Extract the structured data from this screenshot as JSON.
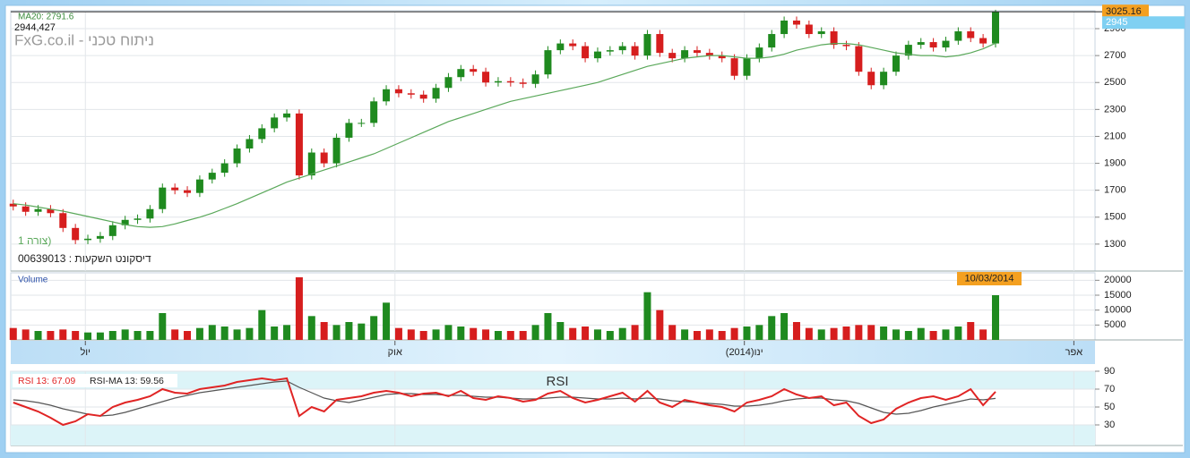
{
  "header": {
    "site": "FxG.co.il - ניתוח טכני",
    "instrument": "00639013 : דיסקונט השקעות",
    "pattern": "צורה 1)"
  },
  "chart_data": [
    {
      "type": "candlestick",
      "open": [
        1600,
        1580,
        1540,
        1560,
        1530,
        1420,
        1330,
        1340,
        1360,
        1440,
        1480,
        1490,
        1560,
        1720,
        1700,
        1680,
        1780,
        1830,
        1900,
        2010,
        2080,
        2160,
        2240,
        2270,
        1810,
        1980,
        1900,
        2090,
        2200,
        2200,
        2360,
        2450,
        2420,
        2410,
        2380,
        2460,
        2540,
        2600,
        2580,
        2500,
        2510,
        2500,
        2490,
        2560,
        2740,
        2790,
        2770,
        2680,
        2730,
        2740,
        2770,
        2700,
        2860,
        2720,
        2680,
        2740,
        2720,
        2700,
        2680,
        2550,
        2680,
        2760,
        2860,
        2960,
        2930,
        2860,
        2880,
        2780,
        2770,
        2580,
        2480,
        2580,
        2700,
        2780,
        2800,
        2760,
        2810,
        2880,
        2830,
        2790
      ],
      "high": [
        1630,
        1610,
        1590,
        1590,
        1560,
        1450,
        1370,
        1390,
        1470,
        1510,
        1520,
        1590,
        1750,
        1750,
        1730,
        1810,
        1860,
        1930,
        2040,
        2110,
        2190,
        2270,
        2300,
        2300,
        2010,
        2010,
        2120,
        2230,
        2230,
        2390,
        2480,
        2480,
        2450,
        2440,
        2490,
        2570,
        2630,
        2630,
        2610,
        2540,
        2540,
        2530,
        2590,
        2770,
        2820,
        2820,
        2800,
        2760,
        2770,
        2800,
        2800,
        2890,
        2890,
        2750,
        2770,
        2770,
        2750,
        2730,
        2710,
        2710,
        2790,
        2890,
        2990,
        2990,
        2960,
        2910,
        2910,
        2810,
        2800,
        2610,
        2610,
        2730,
        2810,
        2830,
        2830,
        2840,
        2910,
        2910,
        2860,
        3040
      ],
      "low": [
        1550,
        1510,
        1510,
        1500,
        1390,
        1300,
        1300,
        1310,
        1330,
        1410,
        1450,
        1460,
        1530,
        1670,
        1650,
        1650,
        1750,
        1800,
        1870,
        1980,
        2050,
        2130,
        2210,
        1780,
        1780,
        1870,
        1870,
        2060,
        2170,
        2170,
        2330,
        2390,
        2380,
        2350,
        2350,
        2430,
        2510,
        2550,
        2470,
        2470,
        2470,
        2460,
        2460,
        2530,
        2710,
        2740,
        2650,
        2650,
        2700,
        2710,
        2670,
        2670,
        2690,
        2650,
        2650,
        2690,
        2670,
        2650,
        2520,
        2520,
        2650,
        2730,
        2830,
        2900,
        2830,
        2830,
        2750,
        2740,
        2550,
        2450,
        2450,
        2550,
        2670,
        2750,
        2730,
        2730,
        2780,
        2800,
        2760,
        2760
      ],
      "close": [
        1580,
        1540,
        1560,
        1530,
        1420,
        1330,
        1340,
        1360,
        1440,
        1480,
        1490,
        1560,
        1720,
        1700,
        1680,
        1780,
        1830,
        1900,
        2010,
        2080,
        2160,
        2240,
        2270,
        1810,
        1980,
        1900,
        2090,
        2200,
        2200,
        2360,
        2450,
        2420,
        2410,
        2380,
        2460,
        2540,
        2600,
        2580,
        2500,
        2510,
        2500,
        2490,
        2560,
        2740,
        2790,
        2770,
        2680,
        2730,
        2740,
        2770,
        2700,
        2860,
        2720,
        2680,
        2740,
        2720,
        2700,
        2680,
        2550,
        2680,
        2760,
        2860,
        2960,
        2930,
        2860,
        2880,
        2780,
        2770,
        2580,
        2480,
        2580,
        2700,
        2780,
        2800,
        2760,
        2810,
        2880,
        2830,
        2790,
        3025.16
      ],
      "up_color": "#1f8a1f",
      "down_color": "#d61e1e",
      "ma": {
        "label": "MA20: 2791.6",
        "color": "#5aa85a",
        "values": [
          1600,
          1590,
          1575,
          1560,
          1545,
          1525,
          1505,
          1485,
          1465,
          1445,
          1430,
          1425,
          1430,
          1450,
          1475,
          1500,
          1530,
          1565,
          1600,
          1640,
          1680,
          1720,
          1760,
          1790,
          1820,
          1850,
          1880,
          1910,
          1940,
          1970,
          2010,
          2050,
          2090,
          2130,
          2170,
          2210,
          2240,
          2270,
          2300,
          2330,
          2360,
          2380,
          2400,
          2420,
          2440,
          2460,
          2480,
          2500,
          2530,
          2560,
          2590,
          2620,
          2640,
          2660,
          2680,
          2690,
          2700,
          2700,
          2690,
          2680,
          2680,
          2690,
          2710,
          2740,
          2760,
          2780,
          2790,
          2790,
          2780,
          2760,
          2740,
          2720,
          2710,
          2700,
          2700,
          2690,
          2700,
          2720,
          2750,
          2791.6
        ]
      },
      "crosshair": {
        "value": 2944.427,
        "label": "2944,427"
      },
      "last_price": 3025.16,
      "marker": 2945,
      "ylim": [
        1100,
        3033
      ],
      "yticks": [
        1300,
        1500,
        1700,
        1900,
        2100,
        2300,
        2500,
        2700,
        2900
      ],
      "xlim": [
        -0.2,
        87
      ]
    },
    {
      "type": "bar",
      "title": "Volume",
      "values": [
        4000,
        3500,
        3000,
        3000,
        3500,
        3000,
        2500,
        2500,
        3000,
        3500,
        3000,
        3000,
        9000,
        3500,
        3000,
        4000,
        5000,
        4500,
        3500,
        4000,
        10000,
        4500,
        5000,
        21000,
        8000,
        6000,
        5000,
        6000,
        5500,
        8000,
        12500,
        4000,
        3500,
        3000,
        3500,
        5000,
        4500,
        4000,
        3500,
        3000,
        3000,
        3000,
        5000,
        9000,
        6000,
        4000,
        4500,
        3500,
        3000,
        4000,
        5000,
        16000,
        10000,
        5000,
        3500,
        3000,
        3500,
        3000,
        4000,
        4500,
        5000,
        8000,
        9000,
        6000,
        4000,
        3500,
        4000,
        4500,
        5000,
        5000,
        4500,
        3500,
        3000,
        4000,
        3000,
        3500,
        4500,
        6000,
        3500,
        15000
      ],
      "ylim": [
        0,
        22500
      ],
      "yticks": [
        5000,
        10000,
        15000,
        20000
      ],
      "xlim": [
        -0.2,
        87
      ],
      "xticks": [
        {
          "value": 5.8,
          "label": "יול"
        },
        {
          "value": 30.7,
          "label": "אוק"
        },
        {
          "value": 58.8,
          "label": "(2014)ינו"
        },
        {
          "value": 85.3,
          "label": "אפר"
        }
      ],
      "date_label": "10/03/2014"
    },
    {
      "type": "line",
      "title": "RSI",
      "series": [
        {
          "name": "RSI 13: 67.09",
          "color": "#e02424",
          "values": [
            55,
            50,
            45,
            38,
            30,
            34,
            42,
            40,
            50,
            55,
            58,
            62,
            70,
            66,
            65,
            70,
            72,
            74,
            78,
            80,
            82,
            80,
            82,
            40,
            50,
            45,
            58,
            60,
            62,
            66,
            68,
            66,
            62,
            65,
            66,
            62,
            68,
            60,
            58,
            62,
            60,
            56,
            58,
            65,
            68,
            60,
            55,
            58,
            62,
            66,
            56,
            68,
            55,
            50,
            58,
            55,
            52,
            50,
            45,
            55,
            58,
            62,
            70,
            64,
            60,
            62,
            52,
            55,
            40,
            32,
            36,
            48,
            55,
            60,
            62,
            58,
            62,
            70,
            52,
            67.09
          ]
        },
        {
          "name": "RSI-MA 13: 59.56",
          "color": "#555555",
          "values": [
            58,
            57,
            55,
            52,
            48,
            45,
            42,
            40,
            41,
            44,
            48,
            52,
            56,
            60,
            63,
            66,
            68,
            70,
            72,
            74,
            76,
            78,
            79,
            72,
            66,
            60,
            57,
            55,
            58,
            61,
            64,
            65,
            65,
            64,
            64,
            63,
            63,
            62,
            61,
            61,
            60,
            59,
            59,
            60,
            61,
            61,
            60,
            59,
            59,
            60,
            59,
            60,
            59,
            57,
            56,
            55,
            54,
            53,
            51,
            51,
            52,
            54,
            57,
            59,
            60,
            60,
            58,
            57,
            54,
            49,
            44,
            42,
            43,
            46,
            50,
            53,
            56,
            59,
            58,
            59.56
          ]
        }
      ],
      "ylim": [
        7,
        90
      ],
      "yticks": [
        30,
        50,
        70,
        90
      ],
      "bands": [
        30,
        70
      ],
      "xlim": [
        -0.2,
        87
      ]
    }
  ]
}
